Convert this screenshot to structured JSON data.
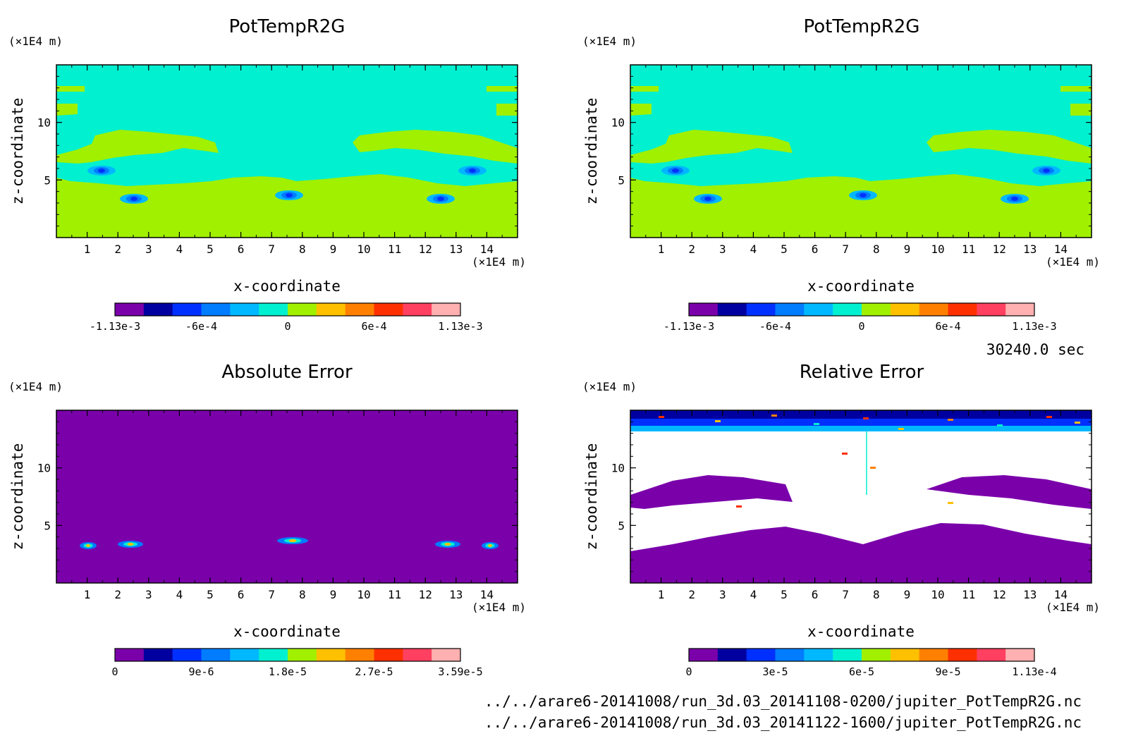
{
  "chart_data": [
    {
      "type": "heatmap",
      "panel": "top-left",
      "title": "PotTempR2G",
      "xlabel": "x-coordinate",
      "ylabel": "z-coordinate",
      "x_unit": "(×1E4 m)",
      "y_unit": "(×1E4 m)",
      "xlim": [
        0,
        15
      ],
      "ylim": [
        0,
        15
      ],
      "xticks": [
        "1",
        "2",
        "3",
        "4",
        "5",
        "6",
        "7",
        "8",
        "9",
        "10",
        "11",
        "12",
        "13",
        "14"
      ],
      "yticks": [
        "5",
        "10"
      ],
      "colorbar": {
        "labels": [
          "-1.13e-3",
          "-6e-4",
          "0",
          "6e-4",
          "1.13e-3"
        ],
        "colors": [
          "#7a00aa",
          "#0000a0",
          "#0030ff",
          "#007cff",
          "#00b8ff",
          "#00f0d0",
          "#a0f000",
          "#ffc000",
          "#ff8000",
          "#ff3000",
          "#ff4060",
          "#ffb0b0"
        ]
      }
    },
    {
      "type": "heatmap",
      "panel": "top-right",
      "title": "PotTempR2G",
      "xlabel": "x-coordinate",
      "ylabel": "z-coordinate",
      "x_unit": "(×1E4 m)",
      "y_unit": "(×1E4 m)",
      "xlim": [
        0,
        15
      ],
      "ylim": [
        0,
        15
      ],
      "xticks": [
        "1",
        "2",
        "3",
        "4",
        "5",
        "6",
        "7",
        "8",
        "9",
        "10",
        "11",
        "12",
        "13",
        "14"
      ],
      "yticks": [
        "5",
        "10"
      ],
      "colorbar": {
        "labels": [
          "-1.13e-3",
          "-6e-4",
          "0",
          "6e-4",
          "1.13e-3"
        ],
        "colors": [
          "#7a00aa",
          "#0000a0",
          "#0030ff",
          "#007cff",
          "#00b8ff",
          "#00f0d0",
          "#a0f000",
          "#ffc000",
          "#ff8000",
          "#ff3000",
          "#ff4060",
          "#ffb0b0"
        ]
      }
    },
    {
      "type": "heatmap",
      "panel": "bottom-left",
      "title": "Absolute Error",
      "xlabel": "x-coordinate",
      "ylabel": "z-coordinate",
      "x_unit": "(×1E4 m)",
      "y_unit": "(×1E4 m)",
      "xlim": [
        0,
        15
      ],
      "ylim": [
        0,
        15
      ],
      "xticks": [
        "1",
        "2",
        "3",
        "4",
        "5",
        "6",
        "7",
        "8",
        "9",
        "10",
        "11",
        "12",
        "13",
        "14"
      ],
      "yticks": [
        "5",
        "10"
      ],
      "colorbar": {
        "labels": [
          "0",
          "9e-6",
          "1.8e-5",
          "2.7e-5",
          "3.59e-5"
        ],
        "colors": [
          "#7a00aa",
          "#0000a0",
          "#0030ff",
          "#007cff",
          "#00b8ff",
          "#00f0d0",
          "#a0f000",
          "#ffc000",
          "#ff8000",
          "#ff3000",
          "#ff4060",
          "#ffb0b0"
        ]
      }
    },
    {
      "type": "heatmap",
      "panel": "bottom-right",
      "title": "Relative Error",
      "xlabel": "x-coordinate",
      "ylabel": "z-coordinate",
      "x_unit": "(×1E4 m)",
      "y_unit": "(×1E4 m)",
      "xlim": [
        0,
        15
      ],
      "ylim": [
        0,
        15
      ],
      "xticks": [
        "1",
        "2",
        "3",
        "4",
        "5",
        "6",
        "7",
        "8",
        "9",
        "10",
        "11",
        "12",
        "13",
        "14"
      ],
      "yticks": [
        "5",
        "10"
      ],
      "colorbar": {
        "labels": [
          "0",
          "3e-5",
          "6e-5",
          "9e-5",
          "1.13e-4"
        ],
        "colors": [
          "#7a00aa",
          "#0000a0",
          "#0030ff",
          "#007cff",
          "#00b8ff",
          "#00f0d0",
          "#a0f000",
          "#ffc000",
          "#ff8000",
          "#ff3000",
          "#ff4060",
          "#ffb0b0"
        ]
      }
    }
  ],
  "time_label": "30240.0 sec",
  "files": [
    "../../arare6-20141008/run_3d.03_20141108-0200/jupiter_PotTempR2G.nc",
    "../../arare6-20141008/run_3d.03_20141122-1600/jupiter_PotTempR2G.nc"
  ]
}
